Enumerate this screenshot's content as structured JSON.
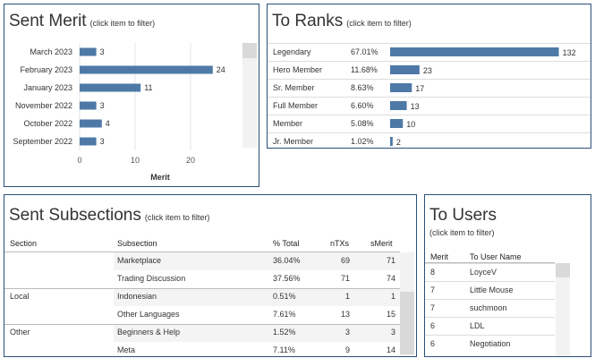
{
  "sent_merit": {
    "title": "Sent Merit",
    "hint": "(click item to filter)",
    "axis_label": "Merit"
  },
  "to_ranks": {
    "title": "To Ranks",
    "hint": "(click item to filter)",
    "rows": [
      {
        "rank": "Legendary",
        "pct": "67.01%",
        "count": 132
      },
      {
        "rank": "Hero Member",
        "pct": "11.68%",
        "count": 23
      },
      {
        "rank": "Sr. Member",
        "pct": "8.63%",
        "count": 17
      },
      {
        "rank": "Full Member",
        "pct": "6.60%",
        "count": 13
      },
      {
        "rank": "Member",
        "pct": "5.08%",
        "count": 10
      },
      {
        "rank": "Jr. Member",
        "pct": "1.02%",
        "count": 2
      }
    ]
  },
  "sent_subsections": {
    "title": "Sent Subsections",
    "hint": "(click item to filter)",
    "headers": {
      "section": "Section",
      "subsection": "Subsection",
      "pct": "% Total",
      "ntx": "nTXs",
      "smerit": "sMerit"
    },
    "rows": [
      {
        "section": "",
        "subsection": "Marketplace",
        "pct": "36.04%",
        "ntx": "69",
        "smerit": "71"
      },
      {
        "section": "",
        "subsection": "Trading Discussion",
        "pct": "37.56%",
        "ntx": "71",
        "smerit": "74"
      },
      {
        "section": "Local",
        "subsection": "Indonesian",
        "pct": "0.51%",
        "ntx": "1",
        "smerit": "1"
      },
      {
        "section": "",
        "subsection": "Other Languages",
        "pct": "7.61%",
        "ntx": "13",
        "smerit": "15"
      },
      {
        "section": "Other",
        "subsection": "Beginners & Help",
        "pct": "1.52%",
        "ntx": "3",
        "smerit": "3"
      },
      {
        "section": "",
        "subsection": "Meta",
        "pct": "7.11%",
        "ntx": "9",
        "smerit": "14"
      }
    ]
  },
  "to_users": {
    "title": "To Users",
    "hint": "(click item to filter)",
    "headers": {
      "merit": "Merit",
      "user": "To User Name"
    },
    "rows": [
      {
        "merit": "8",
        "user": "LoyceV"
      },
      {
        "merit": "7",
        "user": "Little Mouse"
      },
      {
        "merit": "7",
        "user": "suchmoon"
      },
      {
        "merit": "6",
        "user": "LDL"
      },
      {
        "merit": "6",
        "user": "Negotiation"
      }
    ]
  },
  "colors": {
    "bar": "#4e79a7",
    "border": "#2b4f7a"
  },
  "chart_data": [
    {
      "type": "bar",
      "orientation": "horizontal",
      "title": "Sent Merit",
      "categories": [
        "March 2023",
        "February 2023",
        "January 2023",
        "November 2022",
        "October 2022",
        "September 2022"
      ],
      "values": [
        3,
        24,
        11,
        3,
        4,
        3
      ],
      "xlabel": "Merit",
      "xlim": [
        0,
        30
      ],
      "xticks": [
        0,
        10,
        20
      ],
      "grid": true
    },
    {
      "type": "bar",
      "orientation": "horizontal",
      "title": "To Ranks",
      "categories": [
        "Legendary",
        "Hero Member",
        "Sr. Member",
        "Full Member",
        "Member",
        "Jr. Member"
      ],
      "values": [
        132,
        23,
        17,
        13,
        10,
        2
      ],
      "xlim": [
        0,
        140
      ]
    }
  ]
}
